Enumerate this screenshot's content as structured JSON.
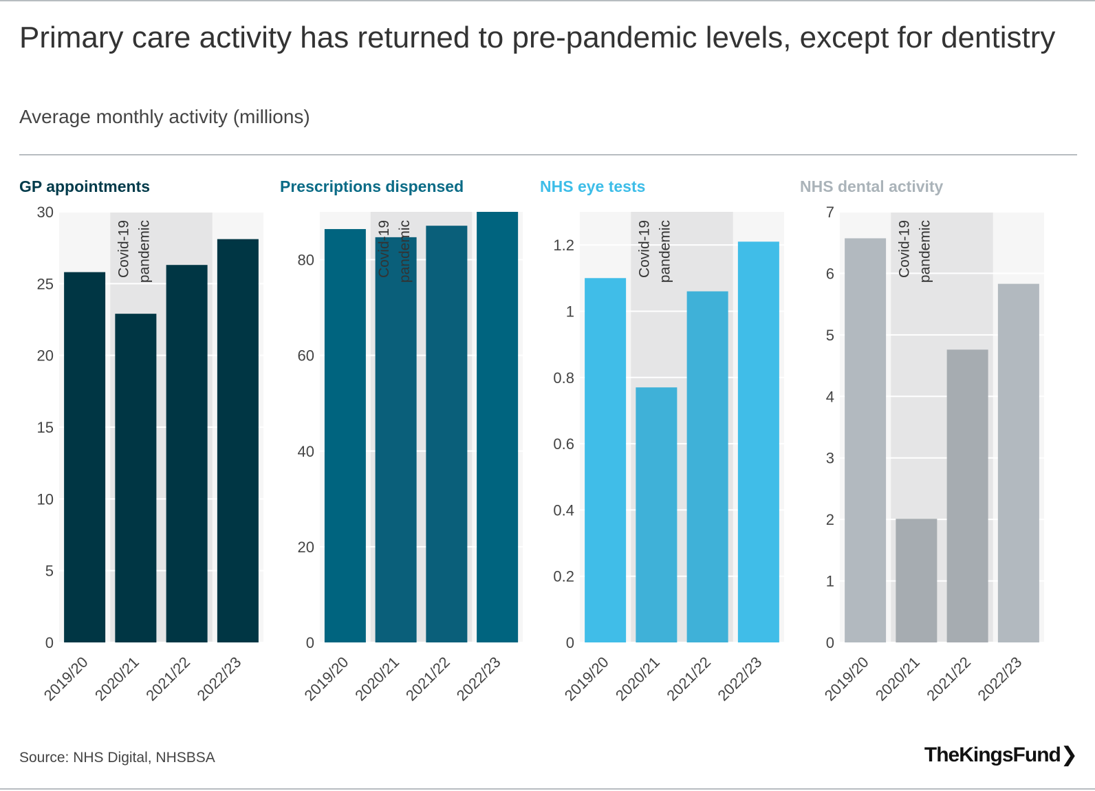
{
  "title": "Primary care activity has returned to pre-pandemic levels, except for dentistry",
  "subtitle": "Average monthly activity (millions)",
  "source": "Source: NHS Digital, NHSBSA",
  "logo": "The King's Fund",
  "logo_display": "TheKingsFund❯",
  "pandemic_label_lines": [
    "Covid-19",
    "pandemic"
  ],
  "chart_data": [
    {
      "type": "bar",
      "title": "GP appointments",
      "title_color": "#003a4a",
      "categories": [
        "2019/20",
        "2020/21",
        "2021/22",
        "2022/23"
      ],
      "values": [
        25.8,
        22.9,
        26.3,
        28.1
      ],
      "bar_colors": [
        "#003644",
        "#003644",
        "#003644",
        "#003644"
      ],
      "ylim": [
        0,
        30
      ],
      "yticks": [
        0,
        5,
        10,
        15,
        20,
        25,
        30
      ],
      "ytick_labels": [
        "0",
        "5",
        "10",
        "15",
        "20",
        "25",
        "30"
      ],
      "shaded_categories": [
        "2020/21",
        "2021/22"
      ]
    },
    {
      "type": "bar",
      "title": "Prescriptions dispensed",
      "title_color": "#0a6b86",
      "categories": [
        "2019/20",
        "2020/21",
        "2021/22",
        "2022/23"
      ],
      "values": [
        86.4,
        84.7,
        87.1,
        90.0
      ],
      "bar_colors": [
        "#00647f",
        "#0a5f7a",
        "#0a5f7a",
        "#00647f"
      ],
      "ylim": [
        0,
        90
      ],
      "yticks": [
        0,
        20,
        40,
        60,
        80
      ],
      "ytick_labels": [
        "0",
        "20",
        "40",
        "60",
        "80"
      ],
      "shaded_categories": [
        "2020/21",
        "2021/22"
      ]
    },
    {
      "type": "bar",
      "title": "NHS eye tests",
      "title_color": "#3dbde8",
      "categories": [
        "2019/20",
        "2020/21",
        "2021/22",
        "2022/23"
      ],
      "values": [
        1.1,
        0.77,
        1.06,
        1.21
      ],
      "bar_colors": [
        "#40bde8",
        "#3fb1d8",
        "#3fb1d8",
        "#40bde8"
      ],
      "ylim": [
        0,
        1.3
      ],
      "yticks": [
        0,
        0.2,
        0.4,
        0.6,
        0.8,
        1,
        1.2
      ],
      "ytick_labels": [
        "0",
        "0.2",
        "0.4",
        "0.6",
        "0.8",
        "1",
        "1.2"
      ],
      "shaded_categories": [
        "2020/21",
        "2021/22"
      ]
    },
    {
      "type": "bar",
      "title": "NHS dental activity",
      "title_color": "#aab3b9",
      "categories": [
        "2019/20",
        "2020/21",
        "2021/22",
        "2022/23"
      ],
      "values": [
        6.57,
        2.01,
        4.76,
        5.83
      ],
      "bar_colors": [
        "#b2b9bf",
        "#a6acb1",
        "#a6acb1",
        "#b2b9bf"
      ],
      "ylim": [
        0,
        7
      ],
      "yticks": [
        0,
        1,
        2,
        3,
        4,
        5,
        6,
        7
      ],
      "ytick_labels": [
        "0",
        "1",
        "2",
        "3",
        "4",
        "5",
        "6",
        "7"
      ],
      "shaded_categories": [
        "2020/21",
        "2021/22"
      ]
    }
  ]
}
